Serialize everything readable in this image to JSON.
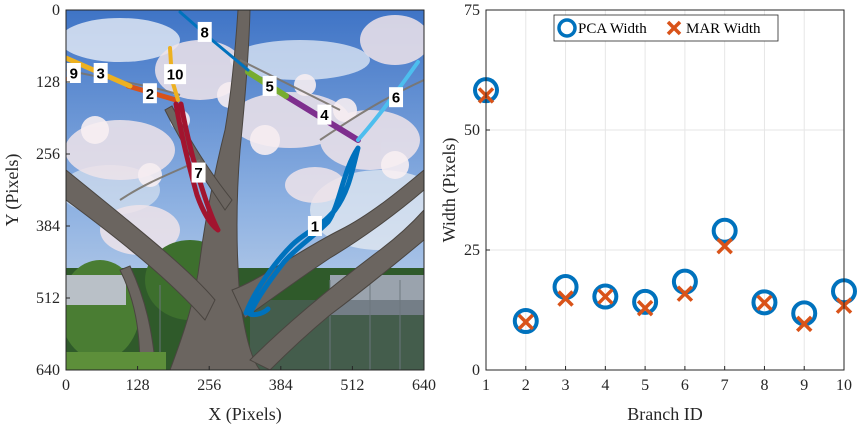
{
  "chart_data": [
    {
      "type": "image",
      "xlabel": "X (Pixels)",
      "ylabel": "Y (Pixels)",
      "xticks": [
        0,
        128,
        256,
        384,
        512,
        640
      ],
      "yticks": [
        0,
        128,
        256,
        384,
        512,
        640
      ],
      "xlim": [
        0,
        640
      ],
      "ylim": [
        0,
        640
      ],
      "y_axis_reversed": true,
      "branches": [
        {
          "id": "1",
          "color": "#0072BD",
          "label_at": [
            445,
            384
          ]
        },
        {
          "id": "2",
          "color": "#D95319",
          "label_at": [
            150,
            148
          ]
        },
        {
          "id": "3",
          "color": "#EDB120",
          "label_at": [
            62,
            112
          ]
        },
        {
          "id": "4",
          "color": "#7E2F8E",
          "label_at": [
            462,
            186
          ]
        },
        {
          "id": "5",
          "color": "#77AC30",
          "label_at": [
            364,
            135
          ]
        },
        {
          "id": "6",
          "color": "#4DBEEE",
          "label_at": [
            590,
            155
          ]
        },
        {
          "id": "7",
          "color": "#A2142F",
          "label_at": [
            237,
            289
          ]
        },
        {
          "id": "8",
          "color": "#0072BD",
          "label_at": [
            248,
            39
          ]
        },
        {
          "id": "9",
          "color": "#D95319",
          "label_at": [
            14,
            112
          ]
        },
        {
          "id": "10",
          "color": "#EDB120",
          "label_at": [
            195,
            114
          ]
        }
      ]
    },
    {
      "type": "scatter",
      "xlabel": "Branch ID",
      "ylabel": "Width (Pixels)",
      "xlim": [
        1,
        10
      ],
      "ylim": [
        0,
        75
      ],
      "xticks": [
        1,
        2,
        3,
        4,
        5,
        6,
        7,
        8,
        9,
        10
      ],
      "yticks": [
        0,
        25,
        50,
        75
      ],
      "grid": true,
      "legend_position": "top-center",
      "series": [
        {
          "name": "PCA Width",
          "marker": "circle",
          "color": "#0072BD",
          "x": [
            1,
            2,
            3,
            4,
            5,
            6,
            7,
            8,
            9,
            10
          ],
          "values": [
            58.3,
            10.2,
            17.3,
            15.3,
            14.2,
            18.4,
            29.0,
            14.1,
            11.8,
            16.4
          ]
        },
        {
          "name": "MAR Width",
          "marker": "x",
          "color": "#D95319",
          "x": [
            1,
            2,
            3,
            4,
            5,
            6,
            7,
            8,
            9,
            10
          ],
          "values": [
            57.2,
            10.0,
            14.9,
            15.3,
            12.9,
            15.9,
            25.8,
            14.0,
            9.6,
            13.4
          ]
        }
      ]
    }
  ]
}
